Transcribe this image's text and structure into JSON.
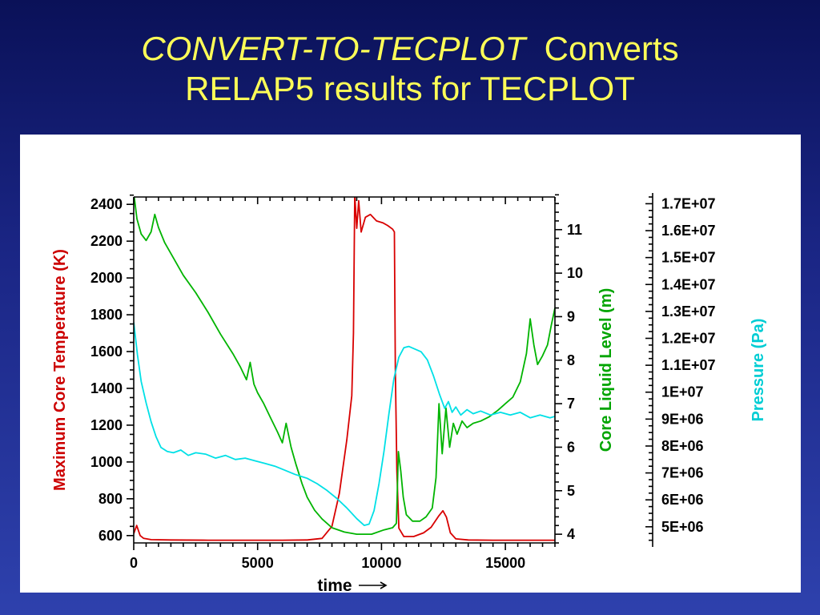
{
  "slide": {
    "title": {
      "line1_italic": "CONVERT-TO-TECPLOT",
      "line1_regular": "  Converts",
      "line2": "RELAP5 results for TECPLOT",
      "color": "#ffff57"
    },
    "background_top": "#0a1158",
    "background_mid": "#1a2584",
    "background_bottom": "#2e41ad",
    "panel_color": "#ffffff"
  },
  "chart_data": {
    "type": "line",
    "title": "",
    "xlabel": "time",
    "xlim": [
      0,
      17000
    ],
    "x_major_ticks": [
      0,
      5000,
      10000,
      15000
    ],
    "x_minor_step": 500,
    "grid": false,
    "legend": "none",
    "axes": [
      {
        "id": "temperature",
        "label": "Maximum Core Temperature (K)",
        "color": "#cc0000",
        "side": "left",
        "ticks": [
          600,
          800,
          1000,
          1200,
          1400,
          1600,
          1800,
          2000,
          2200,
          2400
        ],
        "minor_step": 50,
        "range": [
          560,
          2440
        ]
      },
      {
        "id": "level",
        "label": "Core Liquid Level (m)",
        "color": "#00a400",
        "side": "right",
        "ticks": [
          4,
          5,
          6,
          7,
          8,
          9,
          10,
          11
        ],
        "minor_step": 0.2,
        "range": [
          3.8,
          11.75
        ]
      },
      {
        "id": "pressure",
        "label": "Pressure (Pa)",
        "color": "#00cdd4",
        "side": "far-right",
        "ticks": [
          5000000,
          6000000,
          7000000,
          8000000,
          9000000,
          10000000,
          11000000,
          12000000,
          13000000,
          14000000,
          15000000,
          16000000,
          17000000
        ],
        "tick_labels": [
          "5E+06",
          "6E+06",
          "7E+06",
          "8E+06",
          "9E+06",
          "1E+07",
          "1.1E+07",
          "1.2E+07",
          "1.3E+07",
          "1.4E+07",
          "1.5E+07",
          "1.6E+07",
          "1.7E+07"
        ],
        "minor_step": 250000,
        "range": [
          4400000,
          17250000
        ]
      }
    ],
    "series": [
      {
        "name": "Maximum Core Temperature",
        "axis": "temperature",
        "color": "#d80000",
        "points": [
          [
            0,
            610
          ],
          [
            120,
            655
          ],
          [
            260,
            600
          ],
          [
            400,
            585
          ],
          [
            700,
            578
          ],
          [
            1500,
            576
          ],
          [
            3000,
            575
          ],
          [
            4500,
            575
          ],
          [
            6000,
            575
          ],
          [
            7000,
            576
          ],
          [
            7600,
            585
          ],
          [
            8000,
            650
          ],
          [
            8300,
            830
          ],
          [
            8600,
            1120
          ],
          [
            8800,
            1360
          ],
          [
            8870,
            1700
          ],
          [
            8920,
            2450
          ],
          [
            9000,
            2270
          ],
          [
            9080,
            2420
          ],
          [
            9180,
            2250
          ],
          [
            9350,
            2330
          ],
          [
            9550,
            2345
          ],
          [
            9800,
            2310
          ],
          [
            10050,
            2300
          ],
          [
            10250,
            2285
          ],
          [
            10450,
            2265
          ],
          [
            10520,
            2250
          ],
          [
            10560,
            1500
          ],
          [
            10620,
            950
          ],
          [
            10700,
            640
          ],
          [
            10900,
            595
          ],
          [
            11300,
            595
          ],
          [
            11700,
            615
          ],
          [
            12000,
            645
          ],
          [
            12300,
            705
          ],
          [
            12480,
            735
          ],
          [
            12620,
            700
          ],
          [
            12780,
            615
          ],
          [
            13000,
            582
          ],
          [
            13500,
            576
          ],
          [
            14500,
            575
          ],
          [
            15500,
            575
          ],
          [
            16500,
            575
          ],
          [
            17000,
            575
          ]
        ]
      },
      {
        "name": "Core Liquid Level",
        "axis": "level",
        "color": "#00b400",
        "points": [
          [
            0,
            11.85
          ],
          [
            130,
            11.25
          ],
          [
            300,
            10.9
          ],
          [
            500,
            10.75
          ],
          [
            700,
            10.95
          ],
          [
            850,
            11.35
          ],
          [
            1000,
            11.05
          ],
          [
            1250,
            10.7
          ],
          [
            1500,
            10.45
          ],
          [
            2000,
            9.95
          ],
          [
            2500,
            9.55
          ],
          [
            3000,
            9.1
          ],
          [
            3500,
            8.6
          ],
          [
            4000,
            8.15
          ],
          [
            4300,
            7.85
          ],
          [
            4550,
            7.55
          ],
          [
            4700,
            7.95
          ],
          [
            4850,
            7.45
          ],
          [
            5000,
            7.25
          ],
          [
            5250,
            7.0
          ],
          [
            5500,
            6.7
          ],
          [
            5800,
            6.35
          ],
          [
            6000,
            6.1
          ],
          [
            6150,
            6.55
          ],
          [
            6350,
            6.0
          ],
          [
            6550,
            5.6
          ],
          [
            6800,
            5.15
          ],
          [
            7000,
            4.85
          ],
          [
            7300,
            4.55
          ],
          [
            7600,
            4.35
          ],
          [
            8000,
            4.15
          ],
          [
            8500,
            4.05
          ],
          [
            9000,
            4.0
          ],
          [
            9600,
            4.0
          ],
          [
            10100,
            4.1
          ],
          [
            10450,
            4.15
          ],
          [
            10600,
            4.25
          ],
          [
            10680,
            5.9
          ],
          [
            10780,
            5.45
          ],
          [
            10880,
            4.85
          ],
          [
            11000,
            4.45
          ],
          [
            11250,
            4.3
          ],
          [
            11550,
            4.3
          ],
          [
            11800,
            4.4
          ],
          [
            12050,
            4.6
          ],
          [
            12200,
            5.3
          ],
          [
            12320,
            7.0
          ],
          [
            12450,
            5.85
          ],
          [
            12600,
            6.9
          ],
          [
            12750,
            6.0
          ],
          [
            12900,
            6.55
          ],
          [
            13050,
            6.3
          ],
          [
            13250,
            6.6
          ],
          [
            13450,
            6.45
          ],
          [
            13700,
            6.55
          ],
          [
            14000,
            6.6
          ],
          [
            14350,
            6.7
          ],
          [
            14700,
            6.85
          ],
          [
            15000,
            7.0
          ],
          [
            15300,
            7.15
          ],
          [
            15600,
            7.5
          ],
          [
            15850,
            8.15
          ],
          [
            16000,
            8.95
          ],
          [
            16150,
            8.35
          ],
          [
            16300,
            7.9
          ],
          [
            16500,
            8.1
          ],
          [
            16700,
            8.35
          ],
          [
            16850,
            8.8
          ],
          [
            17000,
            9.2
          ]
        ]
      },
      {
        "name": "Pressure",
        "axis": "pressure",
        "color": "#00e0e6",
        "points": [
          [
            0,
            12600000
          ],
          [
            150,
            11400000
          ],
          [
            300,
            10400000
          ],
          [
            500,
            9600000
          ],
          [
            700,
            8900000
          ],
          [
            900,
            8350000
          ],
          [
            1100,
            7950000
          ],
          [
            1350,
            7800000
          ],
          [
            1600,
            7750000
          ],
          [
            1900,
            7850000
          ],
          [
            2200,
            7650000
          ],
          [
            2500,
            7750000
          ],
          [
            2900,
            7700000
          ],
          [
            3300,
            7550000
          ],
          [
            3700,
            7650000
          ],
          [
            4100,
            7500000
          ],
          [
            4500,
            7550000
          ],
          [
            4900,
            7450000
          ],
          [
            5300,
            7350000
          ],
          [
            5700,
            7250000
          ],
          [
            6100,
            7100000
          ],
          [
            6500,
            6950000
          ],
          [
            7000,
            6800000
          ],
          [
            7400,
            6600000
          ],
          [
            7800,
            6350000
          ],
          [
            8200,
            6050000
          ],
          [
            8600,
            5700000
          ],
          [
            9000,
            5300000
          ],
          [
            9300,
            5050000
          ],
          [
            9500,
            5100000
          ],
          [
            9700,
            5600000
          ],
          [
            9900,
            6600000
          ],
          [
            10100,
            7800000
          ],
          [
            10300,
            9200000
          ],
          [
            10500,
            10500000
          ],
          [
            10700,
            11300000
          ],
          [
            10900,
            11650000
          ],
          [
            11100,
            11700000
          ],
          [
            11350,
            11600000
          ],
          [
            11600,
            11500000
          ],
          [
            11850,
            11200000
          ],
          [
            12100,
            10600000
          ],
          [
            12350,
            9900000
          ],
          [
            12550,
            9400000
          ],
          [
            12700,
            9650000
          ],
          [
            12850,
            9250000
          ],
          [
            13000,
            9450000
          ],
          [
            13200,
            9150000
          ],
          [
            13450,
            9350000
          ],
          [
            13700,
            9200000
          ],
          [
            14000,
            9300000
          ],
          [
            14400,
            9150000
          ],
          [
            14800,
            9250000
          ],
          [
            15200,
            9150000
          ],
          [
            15600,
            9250000
          ],
          [
            16000,
            9050000
          ],
          [
            16400,
            9150000
          ],
          [
            16800,
            9050000
          ],
          [
            17000,
            9100000
          ]
        ]
      }
    ]
  }
}
